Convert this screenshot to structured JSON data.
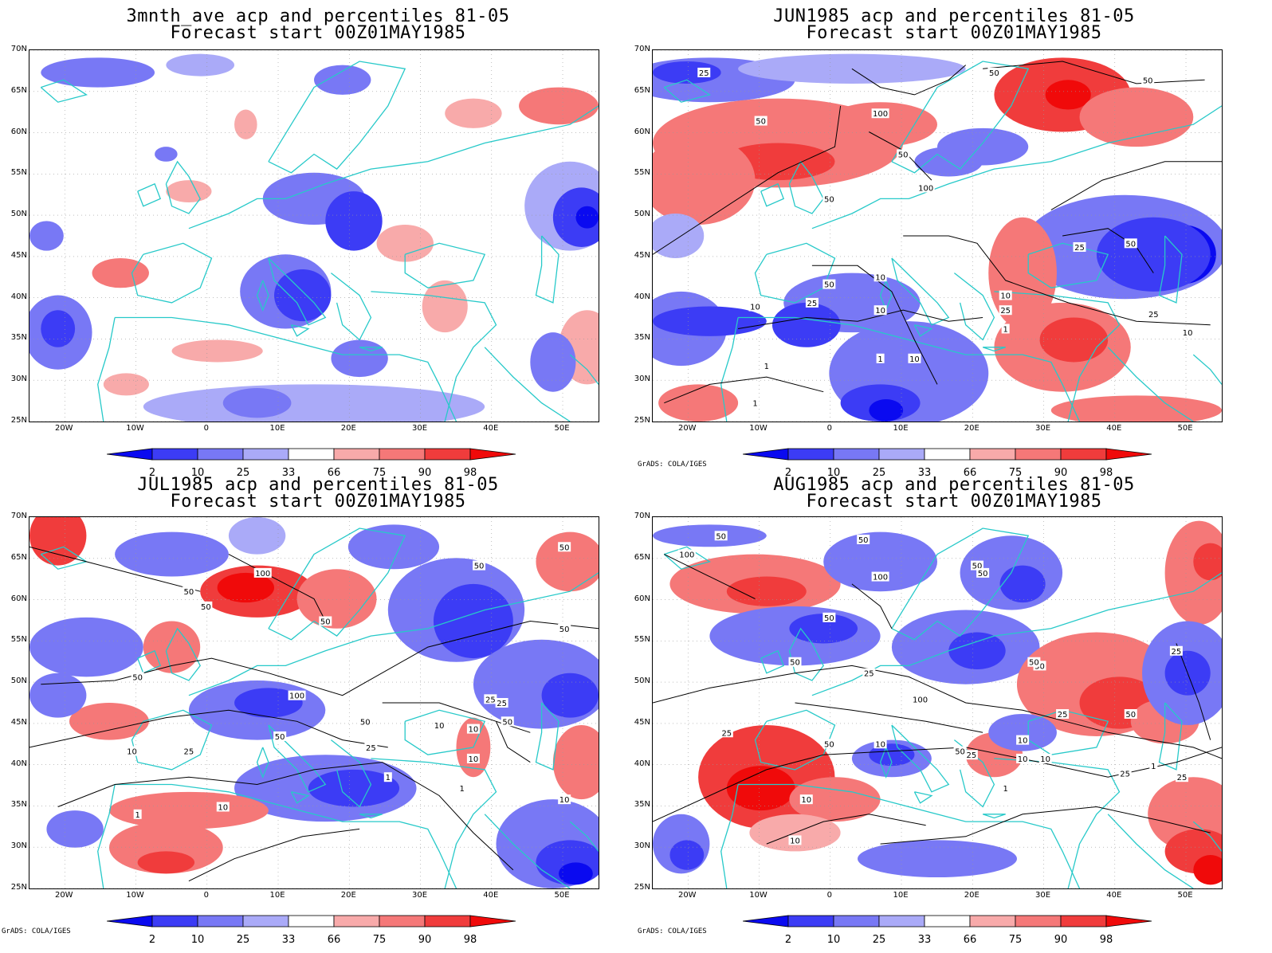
{
  "legend": {
    "ticks": [
      "2",
      "10",
      "25",
      "33",
      "66",
      "75",
      "90",
      "98"
    ],
    "colors": [
      "#0a0af0",
      "#3c3cf5",
      "#7878f5",
      "#aaaaf8",
      "#ffffff",
      "#f8aaaa",
      "#f57878",
      "#f03c3c",
      "#f00a0a"
    ],
    "outline_color": "#000000"
  },
  "axes": {
    "lat_labels": [
      "70N",
      "65N",
      "60N",
      "55N",
      "50N",
      "45N",
      "40N",
      "35N",
      "30N",
      "25N"
    ],
    "lon_labels": [
      "20W",
      "10W",
      "0",
      "10E",
      "20E",
      "30E",
      "40E",
      "50E"
    ],
    "coast_color": "#27c9c9"
  },
  "credit": "GrADS: COLA/IGES",
  "panels": [
    {
      "id": "p1",
      "title_line1": "3mnth_ave acp and percentiles 81-05",
      "title_line2": "Forecast start 00Z01MAY1985",
      "show_credit": false,
      "contour_labels": []
    },
    {
      "id": "p2",
      "title_line1": "JUN1985 acp and percentiles 81-05",
      "title_line2": "Forecast start 00Z01MAY1985",
      "show_credit": true,
      "contour_labels": [
        "25",
        "50",
        "100",
        "50",
        "50",
        "50",
        "50",
        "100",
        "25",
        "50",
        "10",
        "50",
        "25",
        "10",
        "10",
        "25",
        "10",
        "1",
        "1",
        "10",
        "1",
        "1",
        "25",
        "10"
      ]
    },
    {
      "id": "p3",
      "title_line1": "JUL1985 acp and percentiles 81-05",
      "title_line2": "Forecast start 00Z01MAY1985",
      "show_credit": true,
      "contour_labels": [
        "100",
        "50",
        "50",
        "50",
        "50",
        "50",
        "50",
        "50",
        "100",
        "50",
        "50",
        "25",
        "25",
        "10",
        "10",
        "25",
        "10",
        "1",
        "1",
        "1",
        "10",
        "25",
        "50",
        "10",
        "10"
      ]
    },
    {
      "id": "p4",
      "title_line1": "AUG1985 acp and percentiles 81-05",
      "title_line2": "Forecast start 00Z01MAY1985",
      "show_credit": true,
      "contour_labels": [
        "50",
        "50",
        "100",
        "50",
        "50",
        "100",
        "50",
        "50",
        "50",
        "50",
        "25",
        "100",
        "25",
        "50",
        "10",
        "25",
        "50",
        "10",
        "25",
        "10",
        "25",
        "10",
        "1",
        "1",
        "10",
        "10",
        "25",
        "50",
        "25"
      ]
    }
  ]
}
